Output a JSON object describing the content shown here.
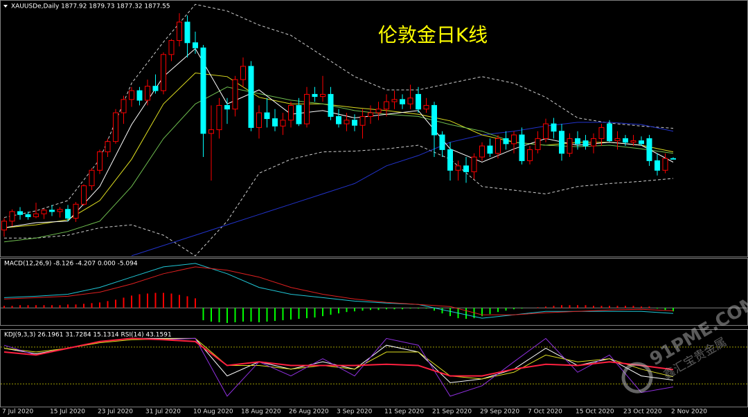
{
  "chart_data": [
    {
      "type": "candlestick",
      "title": "XAUUSDe,Daily 1877.92 1879.73 1877.32 1877.55",
      "annotation": "伦敦金日K线",
      "categories": [
        "7 Jul 2020",
        null,
        null,
        null,
        null,
        null,
        "15 Jul 2020",
        null,
        null,
        null,
        null,
        null,
        "23 Jul 2020",
        null,
        null,
        null,
        null,
        null,
        "31 Jul 2020",
        null,
        null,
        null,
        null,
        null,
        "10 Aug 2020",
        null,
        null,
        null,
        null,
        null,
        "18 Aug 2020",
        null,
        null,
        null,
        null,
        null,
        "26 Aug 2020",
        null,
        null,
        null,
        null,
        null,
        "3 Sep 2020",
        null,
        null,
        null,
        null,
        null,
        "11 Sep 2020",
        null,
        null,
        null,
        null,
        null,
        "21 Sep 2020",
        null,
        null,
        null,
        null,
        null,
        "29 Sep 2020",
        null,
        null,
        null,
        null,
        null,
        "7 Oct 2020",
        null,
        null,
        null,
        null,
        null,
        "15 Oct 2020",
        null,
        null,
        null,
        null,
        null,
        "23 Oct 2020",
        null,
        null,
        null,
        null,
        null,
        "2 Nov 2020"
      ],
      "open": [
        1781,
        1793,
        1806,
        1802,
        1799,
        1803,
        1808,
        1806,
        1809,
        1797,
        1816,
        1841,
        1862,
        1887,
        1901,
        1940,
        1958,
        1970,
        1957,
        1976,
        1970,
        2019,
        2038,
        2063,
        2035,
        2028,
        1912,
        1917,
        1950,
        1945,
        1985,
        2003,
        1920,
        1940,
        1932,
        1922,
        1930,
        1950,
        1925,
        1965,
        1962,
        1965,
        1935,
        1925,
        1930,
        1923,
        1935,
        1940,
        1945,
        1955,
        1958,
        1952,
        1965,
        1945,
        1950,
        1910,
        1890,
        1862,
        1868,
        1860,
        1880,
        1895,
        1885,
        1905,
        1898,
        1910,
        1875,
        1890,
        1905,
        1925,
        1915,
        1885,
        1905,
        1902,
        1895,
        1905,
        1925,
        1902,
        1905,
        1900,
        1902,
        1905,
        1875,
        1862,
        1877.92
      ],
      "high": [
        1797,
        1809,
        1812,
        1806,
        1818,
        1810,
        1815,
        1812,
        1815,
        1819,
        1843,
        1865,
        1890,
        1905,
        1945,
        1963,
        1975,
        1975,
        1985,
        1992,
        2022,
        2040,
        2075,
        2072,
        2050,
        2032,
        1950,
        1960,
        1960,
        1990,
        2015,
        2010,
        1950,
        1960,
        1945,
        1940,
        1955,
        1960,
        1975,
        1975,
        1990,
        1975,
        1945,
        1940,
        1938,
        1945,
        1950,
        1955,
        1965,
        1970,
        1965,
        1978,
        1975,
        1960,
        1955,
        1915,
        1900,
        1875,
        1880,
        1885,
        1900,
        1905,
        1910,
        1915,
        1915,
        1920,
        1895,
        1915,
        1932,
        1933,
        1925,
        1912,
        1915,
        1910,
        1912,
        1925,
        1930,
        1915,
        1910,
        1910,
        1908,
        1910,
        1885,
        1885,
        1879.73
      ],
      "low": [
        1772,
        1786,
        1795,
        1795,
        1797,
        1796,
        1800,
        1798,
        1793,
        1792,
        1814,
        1835,
        1857,
        1880,
        1898,
        1925,
        1948,
        1950,
        1950,
        1966,
        1965,
        2010,
        2030,
        2015,
        2020,
        1880,
        1848,
        1905,
        1925,
        1935,
        1975,
        1915,
        1905,
        1920,
        1915,
        1910,
        1920,
        1922,
        1920,
        1955,
        1955,
        1930,
        1920,
        1915,
        1915,
        1905,
        1925,
        1930,
        1935,
        1945,
        1945,
        1945,
        1940,
        1940,
        1880,
        1880,
        1848,
        1848,
        1845,
        1850,
        1875,
        1880,
        1878,
        1890,
        1885,
        1870,
        1870,
        1885,
        1900,
        1905,
        1875,
        1880,
        1890,
        1890,
        1885,
        1895,
        1900,
        1890,
        1895,
        1895,
        1895,
        1868,
        1855,
        1858,
        1877.32
      ],
      "close": [
        1793,
        1806,
        1802,
        1799,
        1803,
        1808,
        1806,
        1809,
        1797,
        1816,
        1841,
        1862,
        1887,
        1901,
        1940,
        1958,
        1970,
        1957,
        1976,
        1970,
        2019,
        2038,
        2063,
        2035,
        2028,
        1912,
        1917,
        1950,
        1945,
        1985,
        2003,
        1920,
        1940,
        1932,
        1922,
        1930,
        1950,
        1925,
        1965,
        1962,
        1965,
        1935,
        1925,
        1930,
        1923,
        1935,
        1940,
        1945,
        1955,
        1958,
        1952,
        1960,
        1945,
        1950,
        1910,
        1890,
        1862,
        1868,
        1860,
        1880,
        1895,
        1885,
        1905,
        1898,
        1910,
        1875,
        1890,
        1905,
        1925,
        1915,
        1885,
        1905,
        1898,
        1895,
        1905,
        1920,
        1902,
        1905,
        1900,
        1902,
        1898,
        1875,
        1862,
        1878,
        1877.55
      ],
      "up_color": "#ff0000",
      "down_color": "#00ffff",
      "ylim": [
        1745,
        2092
      ],
      "overlays": {
        "x": [
          0,
          4,
          8,
          12,
          16,
          20,
          24,
          28,
          32,
          36,
          40,
          44,
          48,
          52,
          56,
          60,
          64,
          68,
          72,
          76,
          80,
          84
        ],
        "lines": [
          {
            "color": "#d0d0d0",
            "dash": true,
            "values": [
              1798,
              1807,
              1821,
              1877,
              1980,
              2036,
              2087,
              2078,
              2059,
              2045,
              2017,
              1989,
              1971,
              1971,
              1980,
              1989,
              1980,
              1961,
              1933,
              1926,
              1922,
              1919
            ]
          },
          {
            "color": "#d0d0d0",
            "dash": true,
            "values": [
              1770,
              1770,
              1774,
              1784,
              1788,
              1774,
              1746,
              1793,
              1858,
              1877,
              1887,
              1888,
              1891,
              1896,
              1877,
              1840,
              1835,
              1830,
              1840,
              1844,
              1847,
              1851
            ]
          },
          {
            "color": "#2233cc",
            "dash": false,
            "values": [
              null,
              null,
              null,
              null,
              1746,
              1760,
              1774,
              1788,
              1802,
              1816,
              1830,
              1844,
              1868,
              1882,
              1900,
              1910,
              1915,
              1922,
              1927,
              1927,
              1924,
              1915
            ]
          },
          {
            "color": "#e0e020",
            "dash": false,
            "values": [
              1784,
              1788,
              1795,
              1821,
              1877,
              1952,
              1994,
              1989,
              1961,
              1952,
              1952,
              1947,
              1943,
              1938,
              1929,
              1910,
              1900,
              1896,
              1900,
              1900,
              1896,
              1887
            ]
          },
          {
            "color": "#70c050",
            "dash": false,
            "values": [
              1765,
              1770,
              1779,
              1793,
              1840,
              1905,
              1952,
              1975,
              1966,
              1957,
              1952,
              1943,
              1938,
              1935,
              1924,
              1915,
              1900,
              1896,
              1894,
              1896,
              1891,
              1885
            ]
          },
          {
            "color": "#ffffff",
            "dash": false,
            "values": [
              1784,
              1791,
              1793,
              1840,
              1924,
              1989,
              2027,
              1952,
              1971,
              1938,
              1943,
              1933,
              1938,
              1943,
              1891,
              1873,
              1891,
              1905,
              1896,
              1900,
              1896,
              1873
            ]
          }
        ]
      }
    },
    {
      "type": "macd",
      "title": "MACD(12,26,9) -8.126 -4.207 0.000 -5.094",
      "ylim": [
        -25,
        72
      ],
      "histogram": [
        3,
        3,
        4,
        4,
        4,
        4,
        4,
        4,
        5,
        5,
        6,
        7,
        8,
        10,
        12,
        15,
        18,
        20,
        21,
        22,
        22,
        21,
        19,
        17,
        14,
        -18,
        -20,
        -21,
        -22,
        -21,
        -20,
        -20,
        -21,
        -20,
        -19,
        -18,
        -17,
        -16,
        -15,
        -14,
        -12,
        -10,
        -8,
        -6,
        -5,
        -4,
        -3,
        -3,
        -2,
        -2,
        -2,
        -1,
        -1,
        -1,
        -4,
        -8,
        -12,
        -15,
        -16,
        -15,
        -12,
        -9,
        -6,
        -4,
        -2,
        -1,
        0,
        1,
        2,
        3,
        4,
        4,
        4,
        4,
        3,
        3,
        3,
        3,
        3,
        3,
        2,
        2,
        -1,
        -3,
        -5
      ],
      "pos_color": "#ff0000",
      "neg_color": "#00ff00",
      "x": [
        0,
        4,
        8,
        12,
        16,
        20,
        24,
        28,
        32,
        36,
        40,
        44,
        48,
        52,
        56,
        60,
        64,
        68,
        72,
        76,
        80,
        84
      ],
      "series": [
        {
          "color": "#20c8d8",
          "values": [
            15,
            17,
            20,
            30,
            45,
            60,
            65,
            50,
            30,
            20,
            15,
            10,
            7,
            5,
            -5,
            -15,
            -10,
            -5,
            -5,
            -5,
            -5,
            -8.1
          ]
        },
        {
          "color": "#e02020",
          "values": [
            13,
            15,
            17,
            23,
            35,
            50,
            60,
            55,
            45,
            30,
            20,
            13,
            8,
            5,
            2,
            -10,
            -10,
            -7,
            -5,
            -3,
            -2,
            -4.2
          ]
        }
      ]
    },
    {
      "type": "kdj",
      "title": "KDJ(9,3,3) 26.1961 31.7284 15.1314  RSI(14) 43.1591",
      "ylim": [
        -17,
        108
      ],
      "hlines": [
        20,
        80
      ],
      "hline_color": "#a0a000",
      "x": [
        0,
        4,
        8,
        12,
        16,
        20,
        24,
        28,
        32,
        36,
        40,
        44,
        48,
        52,
        56,
        60,
        64,
        68,
        72,
        76,
        80,
        84
      ],
      "series": [
        {
          "color": "#ffffff",
          "width": 1,
          "values": [
            78,
            69,
            78,
            89,
            94,
            94,
            94,
            33,
            56,
            44,
            56,
            44,
            83,
            72,
            22,
            28,
            44,
            78,
            50,
            61,
            33,
            26.2
          ]
        },
        {
          "color": "#e0e020",
          "width": 1,
          "values": [
            78,
            72,
            78,
            87,
            92,
            93,
            94,
            50,
            50,
            44,
            50,
            44,
            72,
            72,
            33,
            28,
            39,
            67,
            56,
            61,
            44,
            31.7
          ]
        },
        {
          "color": "#9030e0",
          "width": 1,
          "values": [
            83,
            67,
            78,
            89,
            94,
            92,
            94,
            0,
            56,
            33,
            61,
            33,
            94,
            83,
            0,
            17,
            56,
            94,
            39,
            67,
            6,
            15.1
          ]
        },
        {
          "color": "#ff2040",
          "width": 2,
          "values": [
            72,
            67,
            78,
            89,
            94,
            92,
            89,
            50,
            56,
            50,
            50,
            50,
            52,
            50,
            33,
            33,
            44,
            52,
            50,
            56,
            50,
            43.2
          ]
        }
      ]
    }
  ],
  "watermark": {
    "site": "91PME.COM",
    "brand": "鑫汇宝贵金属"
  }
}
